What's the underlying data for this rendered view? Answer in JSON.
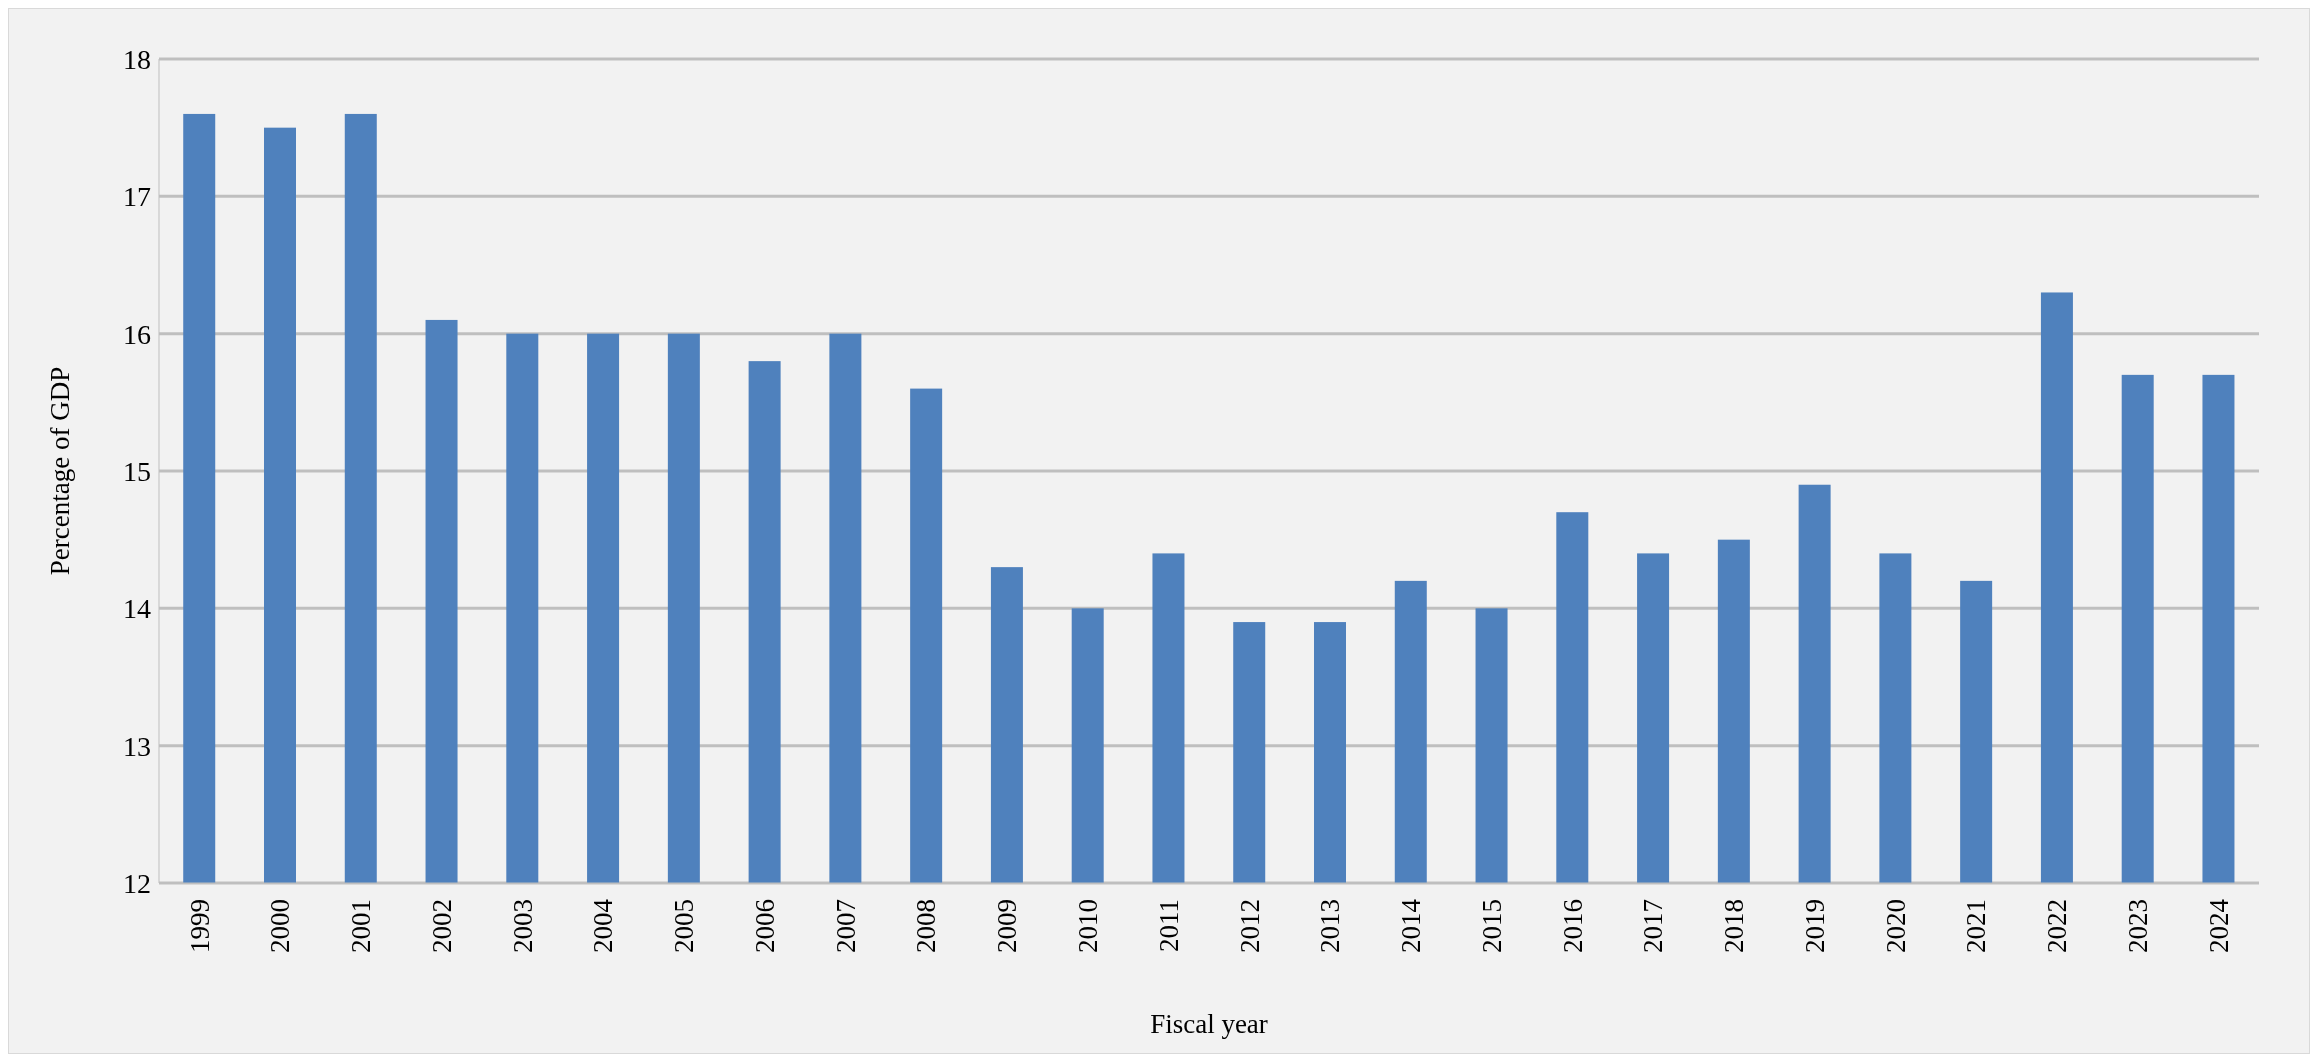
{
  "chart_data": {
    "type": "bar",
    "xlabel": "Fiscal year",
    "ylabel": "Percentage of GDP",
    "categories": [
      "1999",
      "2000",
      "2001",
      "2002",
      "2003",
      "2004",
      "2005",
      "2006",
      "2007",
      "2008",
      "2009",
      "2010",
      "2011",
      "2012",
      "2013",
      "2014",
      "2015",
      "2016",
      "2017",
      "2018",
      "2019",
      "2020",
      "2021",
      "2022",
      "2023",
      "2024"
    ],
    "values": [
      17.6,
      17.5,
      17.6,
      16.1,
      16.0,
      16.0,
      16.0,
      15.8,
      16.0,
      15.6,
      14.3,
      14.0,
      14.4,
      13.9,
      13.9,
      14.2,
      14.0,
      14.7,
      14.4,
      14.5,
      14.9,
      14.4,
      14.2,
      16.3,
      15.7,
      15.7
    ],
    "color": "#4f81bd",
    "ylim": [
      12,
      18
    ],
    "yticks": [
      12,
      13,
      14,
      15,
      16,
      17,
      18
    ],
    "grid": "y"
  }
}
